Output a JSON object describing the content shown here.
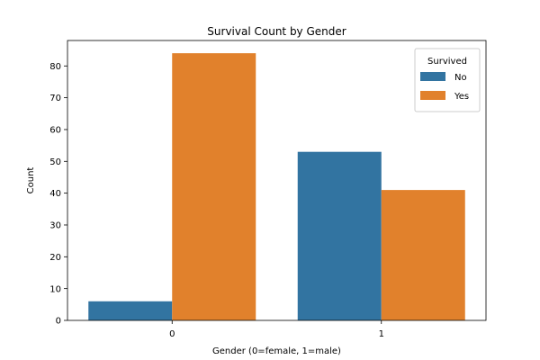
{
  "chart_data": {
    "type": "bar",
    "title": "Survival Count by Gender",
    "xlabel": "Gender (0=female, 1=male)",
    "ylabel": "Count",
    "categories": [
      "0",
      "1"
    ],
    "series": [
      {
        "name": "No",
        "values": [
          6,
          53
        ],
        "color": "#3274a1"
      },
      {
        "name": "Yes",
        "values": [
          84,
          41
        ],
        "color": "#e1812c"
      }
    ],
    "ylim": [
      0,
      88
    ],
    "yticks": [
      0,
      10,
      20,
      30,
      40,
      50,
      60,
      70,
      80
    ],
    "legend": {
      "title": "Survived",
      "position": "top-right"
    },
    "grid": false
  }
}
